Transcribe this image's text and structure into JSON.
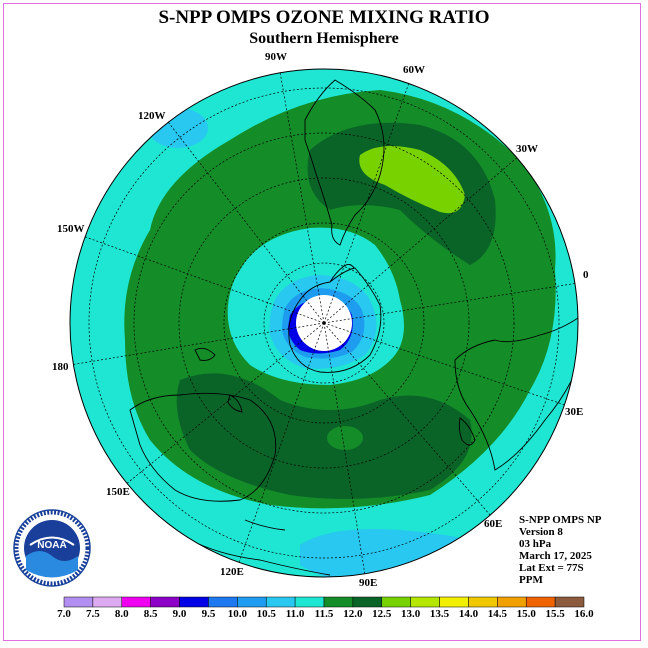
{
  "title": "S-NPP OMPS OZONE MIXING RATIO",
  "subtitle": "Southern Hemisphere",
  "longitude_labels": [
    "90W",
    "60W",
    "30W",
    "0",
    "30E",
    "60E",
    "90E",
    "120E",
    "150E",
    "180",
    "150W",
    "120W"
  ],
  "info": {
    "product": "S-NPP OMPS NP",
    "version": "Version 8",
    "level": "03 hPa",
    "date": "March 17, 2025",
    "lat_ext": "Lat Ext = 77S",
    "units": "PPM"
  },
  "logo": {
    "text": "NOAA",
    "ring_text": "NATIONAL OCEANIC AND ATMOSPHERIC ADMINISTRATION U.S. DEPARTMENT OF COMMERCE"
  },
  "colorbar": {
    "labels": [
      "7.0",
      "7.5",
      "8.0",
      "8.5",
      "9.0",
      "9.5",
      "10.0",
      "10.5",
      "11.0",
      "11.5",
      "12.0",
      "12.5",
      "13.0",
      "13.5",
      "14.0",
      "14.5",
      "15.0",
      "15.5",
      "16.0"
    ],
    "colors": [
      "#b28ef0",
      "#dcaaf0",
      "#f000f0",
      "#8c00c8",
      "#0000e6",
      "#1e78f0",
      "#1e9cf0",
      "#28c8f0",
      "#1ee6d2",
      "#148c28",
      "#0a6428",
      "#78d200",
      "#b4e600",
      "#f0f000",
      "#f0c800",
      "#f0a000",
      "#f06400",
      "#f00000",
      "#8c5a3c"
    ]
  },
  "map_colors": {
    "ocean_ring": "#1ee6d2",
    "green_main": "#148c28",
    "green_dark": "#0a6428",
    "yellow_green": "#78d200",
    "blue_light": "#28c8f0",
    "blue_mid": "#1e9cf0",
    "blue_dark": "#0000e6"
  }
}
